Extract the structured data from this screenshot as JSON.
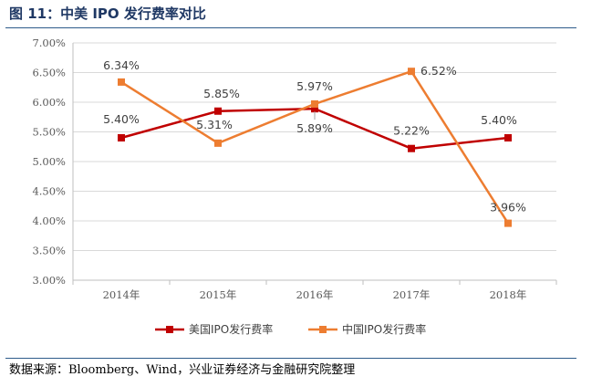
{
  "header": {
    "title": "图 11：中美 IPO 发行费率对比"
  },
  "footer": {
    "source": "数据来源：Bloomberg、Wind，兴业证券经济与金融研究院整理"
  },
  "chart_data": {
    "type": "line",
    "title": "",
    "xlabel": "",
    "ylabel": "",
    "categories": [
      "2014年",
      "2015年",
      "2016年",
      "2017年",
      "2018年"
    ],
    "ylim": [
      3.0,
      7.0
    ],
    "ytick_step": 0.5,
    "yticks": [
      "3.00%",
      "3.50%",
      "4.00%",
      "4.50%",
      "5.00%",
      "5.50%",
      "6.00%",
      "6.50%",
      "7.00%"
    ],
    "grid": true,
    "legend_position": "bottom",
    "series": [
      {
        "name": "美国IPO发行费率",
        "color": "#c00000",
        "marker": "square",
        "values": [
          5.4,
          5.85,
          5.89,
          5.22,
          5.4
        ],
        "labels": [
          "5.40%",
          "5.85%",
          "5.89%",
          "5.22%",
          "5.40%"
        ]
      },
      {
        "name": "中国IPO发行费率",
        "color": "#ed7d31",
        "marker": "square",
        "values": [
          6.34,
          5.31,
          5.97,
          6.52,
          3.96
        ],
        "labels": [
          "6.34%",
          "5.31%",
          "5.97%",
          "6.52%",
          "3.96%"
        ]
      }
    ]
  }
}
